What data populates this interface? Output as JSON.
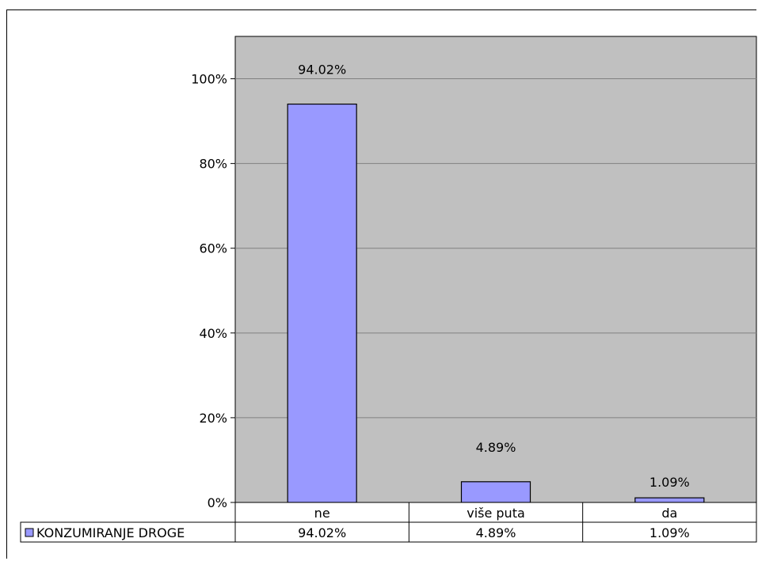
{
  "chart_data": {
    "type": "bar",
    "categories": [
      "ne",
      "više puta",
      "da"
    ],
    "series": [
      {
        "name": "KONZUMIRANJE DROGE",
        "values": [
          94.02,
          4.89,
          1.09
        ]
      }
    ],
    "data_labels": [
      "94.02%",
      "4.89%",
      "1.09%"
    ],
    "ylim": [
      0,
      110
    ],
    "yticks": [
      0,
      20,
      40,
      60,
      80,
      100
    ],
    "ytick_labels": [
      "0%",
      "20%",
      "40%",
      "60%",
      "80%",
      "100%"
    ],
    "grid": true,
    "legend": "in data table",
    "data_table": true,
    "colors": {
      "bar_fill": "#9999ff",
      "plot_background": "#c0c0c0",
      "gridline": "#808080",
      "border": "#000000"
    }
  }
}
